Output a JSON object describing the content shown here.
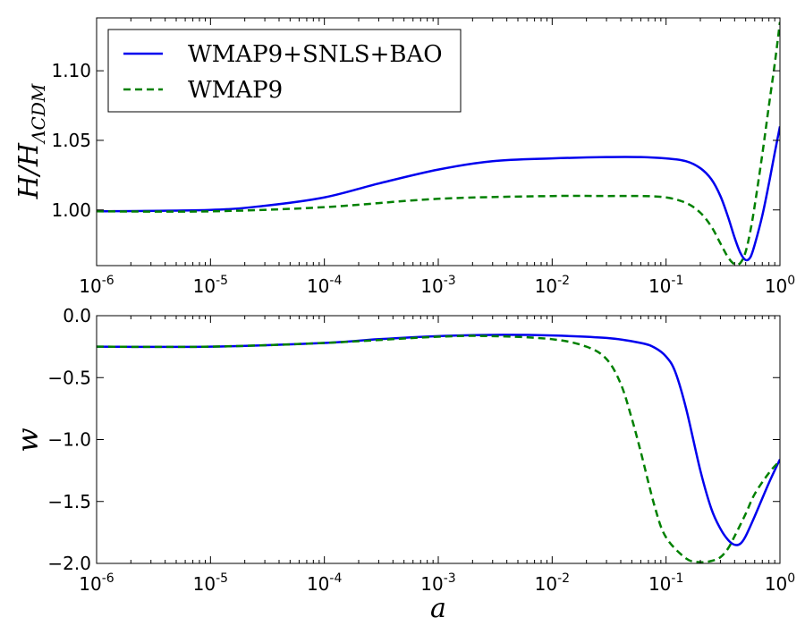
{
  "chart_data": [
    {
      "type": "line",
      "xscale": "log",
      "xlim": [
        1e-06,
        1
      ],
      "ylim": [
        0.96,
        1.138
      ],
      "ylabel": "H/H_ΛCDM",
      "xlabel": "",
      "yticks": [
        {
          "value": 1.0,
          "label": "1.00"
        },
        {
          "value": 1.05,
          "label": "1.05"
        },
        {
          "value": 1.1,
          "label": "1.10"
        }
      ],
      "xticks": [
        {
          "value": 1e-06,
          "base": "10",
          "exp": "-6"
        },
        {
          "value": 1e-05,
          "base": "10",
          "exp": "-5"
        },
        {
          "value": 0.0001,
          "base": "10",
          "exp": "-4"
        },
        {
          "value": 0.001,
          "base": "10",
          "exp": "-3"
        },
        {
          "value": 0.01,
          "base": "10",
          "exp": "-2"
        },
        {
          "value": 0.1,
          "base": "10",
          "exp": "-1"
        },
        {
          "value": 1,
          "base": "10",
          "exp": "0"
        }
      ],
      "legend_position": "top-left",
      "series": [
        {
          "name": "WMAP9+SNLS+BAO",
          "color": "#0000ee",
          "style": "solid",
          "x": [
            1e-06,
            1e-05,
            3e-05,
            0.0001,
            0.0003,
            0.001,
            0.003,
            0.01,
            0.03,
            0.06,
            0.1,
            0.15,
            0.2,
            0.25,
            0.3,
            0.35,
            0.4,
            0.45,
            0.5,
            0.55,
            0.6,
            0.7,
            0.8,
            0.9,
            1.0
          ],
          "y": [
            0.999,
            1.0,
            1.003,
            1.009,
            1.019,
            1.029,
            1.035,
            1.037,
            1.038,
            1.038,
            1.037,
            1.035,
            1.03,
            1.022,
            1.01,
            0.995,
            0.98,
            0.969,
            0.964,
            0.966,
            0.975,
            0.996,
            1.019,
            1.041,
            1.06
          ]
        },
        {
          "name": "WMAP9",
          "color": "#008000",
          "style": "dashed",
          "x": [
            1e-06,
            1e-05,
            0.0001,
            0.001,
            0.01,
            0.03,
            0.06,
            0.1,
            0.15,
            0.2,
            0.25,
            0.3,
            0.35,
            0.4,
            0.45,
            0.5,
            0.55,
            0.6,
            0.7,
            0.8,
            0.9,
            1.0
          ],
          "y": [
            0.999,
            0.999,
            1.002,
            1.008,
            1.01,
            1.01,
            1.01,
            1.009,
            1.005,
            0.998,
            0.988,
            0.976,
            0.966,
            0.961,
            0.962,
            0.97,
            0.985,
            1.003,
            1.04,
            1.075,
            1.105,
            1.135
          ]
        }
      ]
    },
    {
      "type": "line",
      "xscale": "log",
      "xlim": [
        1e-06,
        1
      ],
      "ylim": [
        -2.0,
        0.0
      ],
      "ylabel": "w",
      "xlabel": "a",
      "yticks": [
        {
          "value": 0.0,
          "label": "0.0"
        },
        {
          "value": -0.5,
          "label": "−0.5"
        },
        {
          "value": -1.0,
          "label": "−1.0"
        },
        {
          "value": -1.5,
          "label": "−1.5"
        },
        {
          "value": -2.0,
          "label": "−2.0"
        }
      ],
      "xticks": [
        {
          "value": 1e-06,
          "base": "10",
          "exp": "-6"
        },
        {
          "value": 1e-05,
          "base": "10",
          "exp": "-5"
        },
        {
          "value": 0.0001,
          "base": "10",
          "exp": "-4"
        },
        {
          "value": 0.001,
          "base": "10",
          "exp": "-3"
        },
        {
          "value": 0.01,
          "base": "10",
          "exp": "-2"
        },
        {
          "value": 0.1,
          "base": "10",
          "exp": "-1"
        },
        {
          "value": 1,
          "base": "10",
          "exp": "0"
        }
      ],
      "series": [
        {
          "name": "WMAP9+SNLS+BAO",
          "color": "#0000ee",
          "style": "solid",
          "x": [
            1e-06,
            1e-05,
            0.0001,
            0.0003,
            0.001,
            0.003,
            0.01,
            0.03,
            0.06,
            0.08,
            0.1,
            0.12,
            0.15,
            0.2,
            0.25,
            0.3,
            0.35,
            0.4,
            0.45,
            0.5,
            0.6,
            0.8,
            1.0
          ],
          "y": [
            -0.25,
            -0.25,
            -0.22,
            -0.19,
            -0.165,
            -0.155,
            -0.16,
            -0.18,
            -0.22,
            -0.26,
            -0.33,
            -0.45,
            -0.75,
            -1.25,
            -1.56,
            -1.72,
            -1.81,
            -1.85,
            -1.84,
            -1.78,
            -1.62,
            -1.35,
            -1.16
          ]
        },
        {
          "name": "WMAP9",
          "color": "#008000",
          "style": "dashed",
          "x": [
            1e-06,
            1e-05,
            0.0001,
            0.001,
            0.003,
            0.01,
            0.02,
            0.03,
            0.04,
            0.05,
            0.06,
            0.08,
            0.1,
            0.15,
            0.2,
            0.25,
            0.3,
            0.35,
            0.4,
            0.5,
            0.6,
            0.8,
            1.0
          ],
          "y": [
            -0.25,
            -0.25,
            -0.22,
            -0.17,
            -0.165,
            -0.19,
            -0.25,
            -0.35,
            -0.55,
            -0.83,
            -1.1,
            -1.55,
            -1.79,
            -1.96,
            -1.99,
            -1.98,
            -1.95,
            -1.88,
            -1.78,
            -1.6,
            -1.44,
            -1.27,
            -1.17
          ]
        }
      ]
    }
  ]
}
